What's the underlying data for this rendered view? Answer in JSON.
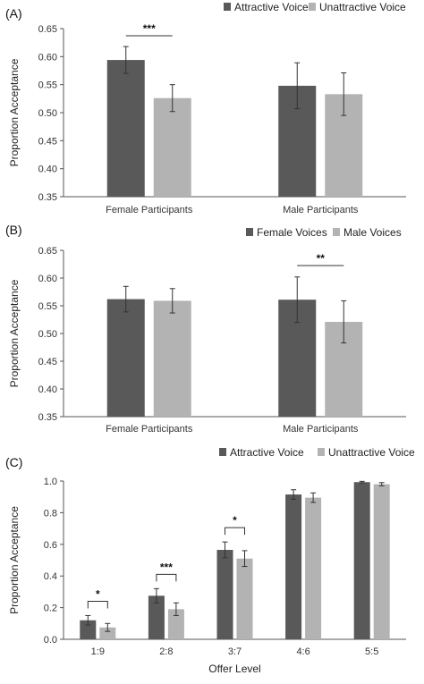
{
  "chart_data": [
    {
      "panel": "(A)",
      "type": "bar",
      "ylabel": "Proportion Acceptance",
      "ylim": [
        0.35,
        0.65
      ],
      "yticks": [
        "0.35",
        "0.40",
        "0.45",
        "0.50",
        "0.55",
        "0.60",
        "0.65"
      ],
      "categories": [
        "Female Participants",
        "Male Participants"
      ],
      "series": [
        {
          "name": "Attractive Voice",
          "color": "#595959",
          "values": [
            0.594,
            0.548
          ],
          "errors": [
            0.024,
            0.041
          ]
        },
        {
          "name": "Unattractive Voice",
          "color": "#b3b3b3",
          "values": [
            0.526,
            0.533
          ],
          "errors": [
            0.024,
            0.038
          ]
        }
      ],
      "legend_position": "top-right",
      "annotations": [
        {
          "category": 0,
          "label": "***"
        }
      ]
    },
    {
      "panel": "(B)",
      "type": "bar",
      "ylabel": "Proportion Acceptance",
      "ylim": [
        0.35,
        0.65
      ],
      "yticks": [
        "0.35",
        "0.40",
        "0.45",
        "0.50",
        "0.55",
        "0.60",
        "0.65"
      ],
      "categories": [
        "Female Participants",
        "Male Participants"
      ],
      "series": [
        {
          "name": "Female Voices",
          "color": "#595959",
          "values": [
            0.562,
            0.561
          ],
          "errors": [
            0.023,
            0.041
          ]
        },
        {
          "name": "Male Voices",
          "color": "#b3b3b3",
          "values": [
            0.559,
            0.521
          ],
          "errors": [
            0.022,
            0.038
          ]
        }
      ],
      "legend_position": "top-right",
      "annotations": [
        {
          "category": 1,
          "label": "**"
        }
      ]
    },
    {
      "panel": "(C)",
      "type": "bar",
      "xlabel": "Offer Level",
      "ylabel": "Proportion Acceptance",
      "ylim": [
        0.0,
        1.0
      ],
      "yticks": [
        "0.0",
        "0.2",
        "0.4",
        "0.6",
        "0.8",
        "1.0"
      ],
      "categories": [
        "1:9",
        "2:8",
        "3:7",
        "4:6",
        "5:5"
      ],
      "series": [
        {
          "name": "Attractive Voice",
          "color": "#595959",
          "values": [
            0.12,
            0.275,
            0.565,
            0.915,
            0.993
          ],
          "errors": [
            0.03,
            0.045,
            0.05,
            0.03,
            0.005
          ]
        },
        {
          "name": "Unattractive Voice",
          "color": "#b3b3b3",
          "values": [
            0.075,
            0.19,
            0.51,
            0.895,
            0.98
          ],
          "errors": [
            0.025,
            0.04,
            0.05,
            0.03,
            0.01
          ]
        }
      ],
      "legend_position": "top-right",
      "annotations": [
        {
          "category": 0,
          "label": "*"
        },
        {
          "category": 1,
          "label": "***"
        },
        {
          "category": 2,
          "label": "*"
        }
      ]
    }
  ]
}
